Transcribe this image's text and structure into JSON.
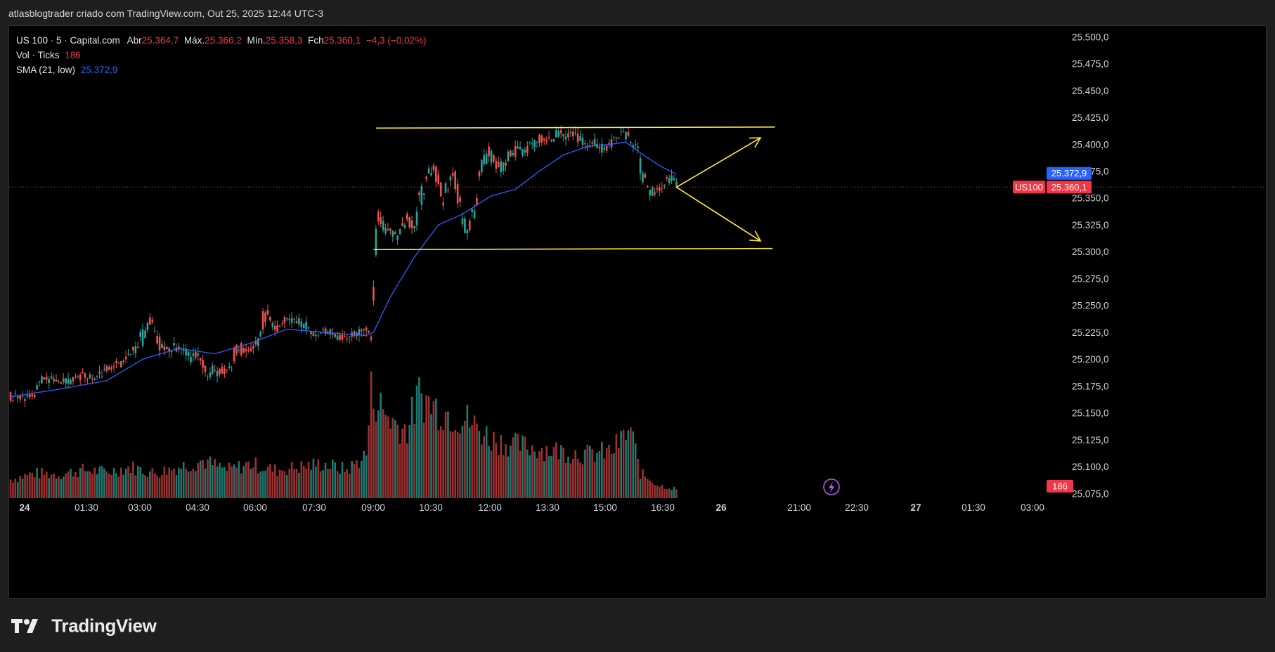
{
  "header": {
    "title": "atlasblogtrader criado com TradingView.com, Out 25, 2025 12:44 UTC-3"
  },
  "legend": {
    "symbol": "US 100 · 5 · Capital.com",
    "open_label": "Abr",
    "open": "25.364,7",
    "high_label": "Máx.",
    "high": "25.366,2",
    "low_label": "Mín.",
    "low": "25.358,3",
    "close_label": "Fch",
    "close": "25.360,1",
    "change": "−4,3 (−0,02%)",
    "vol_label": "Vol · Ticks",
    "vol": "186",
    "sma_label": "SMA (21, low)",
    "sma": "25.372,9"
  },
  "price_axis": {
    "ticks": [
      "25.500,0",
      "25.475,0",
      "25.450,0",
      "25.425,0",
      "25.400,0",
      "25.375,0",
      "25.350,0",
      "25.325,0",
      "25.300,0",
      "25.275,0",
      "25.250,0",
      "25.225,0",
      "25.200,0",
      "25.175,0",
      "25.150,0",
      "25.125,0",
      "25.100,0",
      "25.075,0"
    ],
    "sma_badge": "25.372,9",
    "symbol_badge": "US100",
    "price_badge": "25.360,1",
    "volume_badge": "186"
  },
  "time_axis": {
    "ticks": [
      "24",
      "01:30",
      "03:00",
      "04:30",
      "06:00",
      "07:30",
      "09:00",
      "10:30",
      "12:00",
      "13:30",
      "15:00",
      "16:30",
      "26",
      "21:00",
      "22:30",
      "27",
      "01:30",
      "03:00"
    ]
  },
  "colors": {
    "up": "#26a69a",
    "down": "#ef5350",
    "sma": "#2962ff",
    "annotation": "#ffeb3b",
    "price_line": "#f23645",
    "background": "#000000"
  },
  "footer": {
    "brand": "TradingView"
  },
  "chart_data": {
    "type": "candlestick",
    "symbol": "US 100",
    "interval": "5",
    "yrange": [
      25072,
      25510
    ],
    "last_price": 25360.1,
    "sma_last": 25372.9,
    "candles_anchor": [
      [
        0,
        25170,
        25158
      ],
      [
        5,
        25168,
        25162
      ],
      [
        9,
        25168,
        25160
      ],
      [
        13,
        25185,
        25175
      ],
      [
        17,
        25184,
        25178
      ],
      [
        21,
        25180,
        25176
      ],
      [
        25,
        25184,
        25176
      ],
      [
        30,
        25190,
        25181
      ],
      [
        34,
        25185,
        25180
      ],
      [
        38,
        25190,
        25182
      ],
      [
        43,
        25198,
        25190
      ],
      [
        47,
        25202,
        25195
      ],
      [
        51,
        25210,
        25202
      ],
      [
        55,
        25232,
        25210
      ],
      [
        57,
        25240,
        25228
      ],
      [
        59,
        25240,
        25232
      ],
      [
        60,
        25228,
        25222
      ],
      [
        62,
        25222,
        25208
      ],
      [
        66,
        25215,
        25205
      ],
      [
        70,
        25215,
        25208
      ],
      [
        73,
        25210,
        25203
      ],
      [
        75,
        25205,
        25196
      ],
      [
        77,
        25208,
        25195
      ],
      [
        80,
        25202,
        25188
      ],
      [
        82,
        25190,
        25180
      ],
      [
        85,
        25198,
        25186
      ],
      [
        88,
        25193,
        25184
      ],
      [
        90,
        25192,
        25186
      ],
      [
        92,
        25202,
        25190
      ],
      [
        94,
        25220,
        25202
      ],
      [
        97,
        25212,
        25205
      ],
      [
        100,
        25205,
        25210
      ],
      [
        103,
        25225,
        25210
      ],
      [
        105,
        25245,
        25228
      ],
      [
        107,
        25248,
        25240
      ],
      [
        108,
        25240,
        25230
      ],
      [
        111,
        25232,
        25224
      ],
      [
        114,
        25240,
        25232
      ],
      [
        117,
        25240,
        25235
      ],
      [
        120,
        25238,
        25230
      ],
      [
        123,
        25235,
        25228
      ],
      [
        125,
        25230,
        25222
      ],
      [
        128,
        25225,
        25220
      ],
      [
        131,
        25230,
        25222
      ],
      [
        134,
        25225,
        25218
      ],
      [
        137,
        25222,
        25218
      ],
      [
        140,
        25222,
        25218
      ],
      [
        143,
        25225,
        25222
      ],
      [
        146,
        25228,
        25224
      ],
      [
        148,
        25232,
        25226
      ],
      [
        149,
        25226,
        25220
      ],
      [
        150,
        25222,
        25218
      ],
      [
        151,
        25330,
        25225
      ],
      [
        153,
        25340,
        25325
      ],
      [
        155,
        25330,
        25315
      ],
      [
        157,
        25325,
        25312
      ],
      [
        159,
        25322,
        25315
      ],
      [
        161,
        25318,
        25310
      ],
      [
        163,
        25330,
        25318
      ],
      [
        165,
        25335,
        25325
      ],
      [
        167,
        25328,
        25316
      ],
      [
        169,
        25352,
        25322
      ],
      [
        171,
        25370,
        25345
      ],
      [
        174,
        25384,
        25355
      ],
      [
        176,
        25386,
        25370
      ],
      [
        178,
        25375,
        25358
      ],
      [
        180,
        25360,
        25340
      ],
      [
        182,
        25370,
        25355
      ],
      [
        184,
        25380,
        25368
      ],
      [
        186,
        25368,
        25345
      ],
      [
        188,
        25345,
        25320
      ],
      [
        190,
        25322,
        25310
      ],
      [
        192,
        25340,
        25325
      ],
      [
        194,
        25370,
        25340
      ],
      [
        196,
        25392,
        25372
      ],
      [
        199,
        25398,
        25385
      ],
      [
        201,
        25392,
        25378
      ],
      [
        203,
        25385,
        25370
      ],
      [
        205,
        25388,
        25372
      ],
      [
        207,
        25393,
        25382
      ],
      [
        209,
        25396,
        25388
      ],
      [
        211,
        25400,
        25390
      ],
      [
        213,
        25395,
        25385
      ],
      [
        215,
        25400,
        25390
      ],
      [
        217,
        25404,
        25396
      ],
      [
        219,
        25408,
        25400
      ],
      [
        221,
        25410,
        25402
      ],
      [
        223,
        25406,
        25398
      ],
      [
        225,
        25410,
        25402
      ],
      [
        227,
        25413,
        25405
      ],
      [
        229,
        25414,
        25406
      ],
      [
        231,
        25412,
        25404
      ],
      [
        233,
        25416,
        25408
      ],
      [
        235,
        25412,
        25404
      ],
      [
        237,
        25408,
        25400
      ],
      [
        239,
        25405,
        25398
      ],
      [
        241,
        25404,
        25396
      ],
      [
        243,
        25404,
        25398
      ],
      [
        245,
        25402,
        25395
      ],
      [
        247,
        25398,
        25392
      ],
      [
        249,
        25404,
        25394
      ],
      [
        251,
        25410,
        25400
      ],
      [
        253,
        25415,
        25405
      ],
      [
        255,
        25416,
        25408
      ],
      [
        257,
        25412,
        25400
      ],
      [
        259,
        25405,
        25395
      ],
      [
        261,
        25398,
        25386
      ],
      [
        262,
        25390,
        25370
      ],
      [
        264,
        25375,
        25355
      ],
      [
        266,
        25362,
        25352
      ],
      [
        268,
        25358,
        25352
      ],
      [
        270,
        25360,
        25355
      ],
      [
        272,
        25368,
        25360
      ],
      [
        274,
        25372,
        25365
      ],
      [
        276,
        25370,
        25362
      ],
      [
        277,
        25364,
        25360
      ]
    ],
    "sma_anchor": [
      [
        0,
        25165
      ],
      [
        20,
        25172
      ],
      [
        40,
        25180
      ],
      [
        55,
        25200
      ],
      [
        70,
        25210
      ],
      [
        85,
        25205
      ],
      [
        100,
        25215
      ],
      [
        115,
        25228
      ],
      [
        130,
        25225
      ],
      [
        148,
        25222
      ],
      [
        151,
        25225
      ],
      [
        158,
        25258
      ],
      [
        168,
        25295
      ],
      [
        178,
        25325
      ],
      [
        188,
        25335
      ],
      [
        200,
        25352
      ],
      [
        210,
        25358
      ],
      [
        220,
        25375
      ],
      [
        230,
        25390
      ],
      [
        240,
        25398
      ],
      [
        250,
        25400
      ],
      [
        256,
        25402
      ],
      [
        262,
        25392
      ],
      [
        270,
        25380
      ],
      [
        277,
        25372
      ]
    ],
    "volume_anchor": [
      [
        0,
        30
      ],
      [
        10,
        40
      ],
      [
        20,
        38
      ],
      [
        30,
        45
      ],
      [
        40,
        42
      ],
      [
        50,
        50
      ],
      [
        55,
        45
      ],
      [
        60,
        40
      ],
      [
        70,
        50
      ],
      [
        80,
        60
      ],
      [
        90,
        45
      ],
      [
        100,
        55
      ],
      [
        110,
        45
      ],
      [
        120,
        50
      ],
      [
        130,
        55
      ],
      [
        140,
        45
      ],
      [
        148,
        70
      ],
      [
        150,
        170
      ],
      [
        155,
        140
      ],
      [
        160,
        120
      ],
      [
        165,
        110
      ],
      [
        170,
        165
      ],
      [
        175,
        150
      ],
      [
        180,
        140
      ],
      [
        190,
        125
      ],
      [
        200,
        95
      ],
      [
        210,
        85
      ],
      [
        220,
        80
      ],
      [
        230,
        75
      ],
      [
        240,
        70
      ],
      [
        250,
        75
      ],
      [
        258,
        110
      ],
      [
        262,
        40
      ],
      [
        270,
        20
      ],
      [
        277,
        15
      ]
    ],
    "volume_max": 180,
    "candle_count": 278,
    "annotations": [
      {
        "type": "line",
        "from": [
          152,
          25415
        ],
        "to": [
          318,
          25416
        ]
      },
      {
        "type": "line",
        "from": [
          151,
          25302
        ],
        "to": [
          317,
          25303
        ]
      },
      {
        "type": "arrow",
        "from": [
          277,
          25360
        ],
        "to": [
          312,
          25406
        ]
      },
      {
        "type": "arrow",
        "from": [
          277,
          25360
        ],
        "to": [
          312,
          25310
        ]
      }
    ]
  }
}
